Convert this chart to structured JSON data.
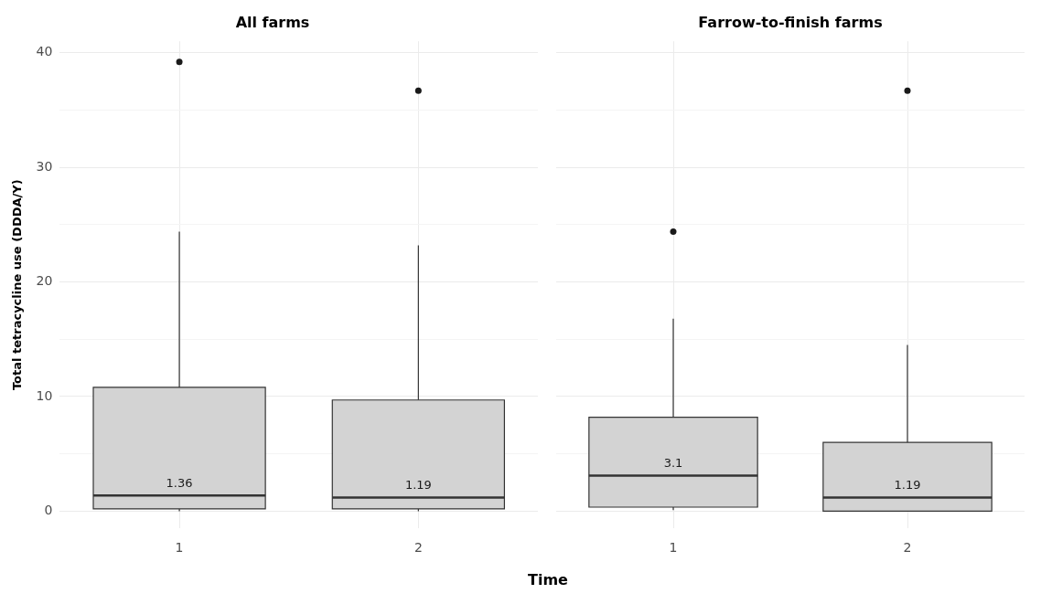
{
  "chart_data": [
    {
      "type": "box",
      "title": "All farms",
      "ylabel": "Total tetracycline use (DDDA/Y)",
      "xlabel": "Time",
      "categories": [
        "1",
        "2"
      ],
      "ylim": [
        -1.5,
        41
      ],
      "yticks": [
        0,
        {
          "value": 5,
          "label": null
        },
        10,
        {
          "value": 15,
          "label": null
        },
        20,
        {
          "value": 25,
          "label": null
        },
        30,
        {
          "value": 35,
          "label": null
        },
        40
      ],
      "grid": true,
      "series": [
        {
          "color": "#d3d3d3",
          "value_labels": [
            "1.36",
            "1.19"
          ],
          "boxes": [
            {
              "low": 0,
              "q1": 0.2,
              "median": 1.36,
              "q3": 10.8,
              "high": 24.4,
              "outliers": [
                39.2
              ]
            },
            {
              "low": 0,
              "q1": 0.2,
              "median": 1.19,
              "q3": 9.7,
              "high": 23.2,
              "outliers": [
                36.7
              ]
            }
          ]
        }
      ]
    },
    {
      "type": "box",
      "title": "Farrow-to-finish farms",
      "categories": [
        "1",
        "2"
      ],
      "ylim": [
        -1.5,
        41
      ],
      "yticks": [
        0,
        {
          "value": 5,
          "label": null
        },
        10,
        {
          "value": 15,
          "label": null
        },
        20,
        {
          "value": 25,
          "label": null
        },
        30,
        {
          "value": 35,
          "label": null
        },
        40
      ],
      "grid": true,
      "tick_labels": "x",
      "series": [
        {
          "color": "#d3d3d3",
          "value_labels": [
            "3.1",
            "1.19"
          ],
          "boxes": [
            {
              "low": 0.1,
              "q1": 0.35,
              "median": 3.1,
              "q3": 8.2,
              "high": 16.8,
              "outliers": [
                24.4
              ]
            },
            {
              "low": 0,
              "q1": 0,
              "median": 1.19,
              "q3": 6.0,
              "high": 14.5,
              "outliers": [
                36.7
              ]
            }
          ]
        }
      ]
    }
  ]
}
